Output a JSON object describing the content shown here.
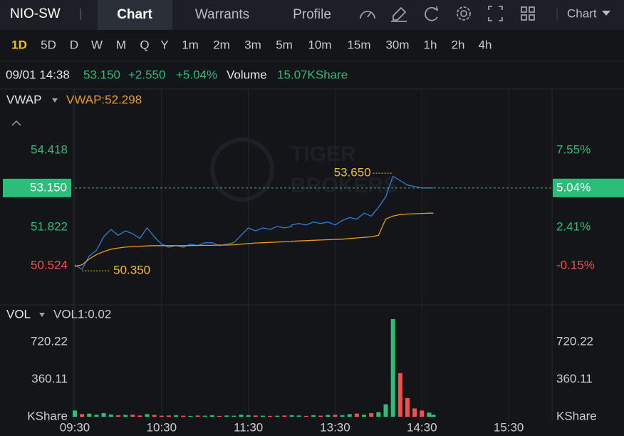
{
  "header": {
    "symbol": "NIO-SW",
    "tabs": [
      "Chart",
      "Warrants",
      "Profile"
    ],
    "chart_menu": "Chart"
  },
  "periods": [
    "1D",
    "5D",
    "D",
    "W",
    "M",
    "Q",
    "Y",
    "1m",
    "2m",
    "3m",
    "5m",
    "10m",
    "15m",
    "30m",
    "1h",
    "2h",
    "4h"
  ],
  "quote": {
    "time": "09/01 14:38",
    "price": "53.150",
    "change": "+2.550",
    "change_pct": "+5.04%",
    "volume_label": "Volume",
    "volume": "15.07KShare"
  },
  "watermark": [
    "TIGER",
    "BROKERS"
  ],
  "chart_data": [
    {
      "type": "line",
      "x": [
        "09:30",
        "09:35",
        "09:40",
        "09:45",
        "09:50",
        "09:55",
        "10:00",
        "10:05",
        "10:10",
        "10:15",
        "10:20",
        "10:25",
        "10:30",
        "10:35",
        "10:40",
        "10:45",
        "10:50",
        "10:55",
        "11:00",
        "11:05",
        "11:10",
        "11:15",
        "11:20",
        "11:25",
        "11:30",
        "11:35",
        "11:40",
        "11:45",
        "11:50",
        "11:55",
        "12:00",
        "13:00",
        "13:05",
        "13:10",
        "13:15",
        "13:20",
        "13:25",
        "13:30",
        "13:35",
        "13:40",
        "13:45",
        "13:50",
        "13:55",
        "14:00",
        "14:05",
        "14:10",
        "14:15",
        "14:20",
        "14:25",
        "14:30",
        "14:35",
        "14:38"
      ],
      "series": [
        {
          "color": "#2f7ed8",
          "values": [
            50.55,
            50.4,
            50.85,
            51.05,
            51.5,
            51.75,
            51.55,
            51.7,
            51.6,
            51.45,
            51.8,
            51.5,
            51.25,
            51.15,
            51.2,
            51.15,
            51.25,
            51.2,
            51.3,
            51.3,
            51.2,
            51.25,
            51.3,
            51.55,
            51.8,
            51.7,
            51.8,
            51.75,
            51.85,
            51.8,
            51.85,
            51.9,
            51.95,
            51.9,
            52.0,
            51.95,
            52.0,
            51.9,
            52.05,
            52.15,
            52.1,
            52.3,
            52.2,
            52.5,
            52.85,
            53.55,
            53.4,
            53.25,
            53.2,
            53.15,
            53.15,
            53.15
          ]
        },
        {
          "name": "VWAP",
          "color": "#e89a23",
          "values": [
            50.5,
            50.55,
            50.75,
            50.9,
            51.0,
            51.08,
            51.12,
            51.15,
            51.17,
            51.18,
            51.19,
            51.2,
            51.2,
            51.2,
            51.2,
            51.2,
            51.2,
            51.21,
            51.21,
            51.21,
            51.22,
            51.22,
            51.23,
            51.25,
            51.27,
            51.29,
            51.3,
            51.31,
            51.32,
            51.33,
            51.34,
            51.35,
            51.36,
            51.37,
            51.38,
            51.39,
            51.4,
            51.41,
            51.42,
            51.44,
            51.46,
            51.48,
            51.5,
            51.55,
            52.1,
            52.2,
            52.25,
            52.27,
            52.28,
            52.29,
            52.3,
            52.298
          ]
        }
      ],
      "indicator_label": "VWAP:52.298",
      "xlim": [
        "09:30",
        "16:00"
      ],
      "ylim": [
        49.75,
        55.05
      ],
      "yticks": [
        50.524,
        51.822,
        54.418
      ],
      "y2lim": [
        -1.68,
        8.79
      ],
      "y2ticks": [
        {
          "value": -0.15,
          "label": "-0.15%"
        },
        {
          "value": 2.41,
          "label": "2.41%"
        },
        {
          "value": 7.55,
          "label": "7.55%"
        }
      ],
      "last": {
        "value": 53.15,
        "label": "53.150"
      },
      "last_pct": {
        "value": 5.04,
        "label": "5.04%"
      },
      "high": {
        "value": 53.65,
        "label": "53.650"
      },
      "low": {
        "value": 50.35,
        "label": "50.350"
      },
      "up_color": "#2dbd7a",
      "down_color": "#f0514f",
      "grid": true
    },
    {
      "type": "bar",
      "name": "VOL",
      "indicator_label": "VOL1:0.02",
      "x": [
        "09:30",
        "09:35",
        "09:40",
        "09:45",
        "09:50",
        "09:55",
        "10:00",
        "10:05",
        "10:10",
        "10:15",
        "10:20",
        "10:25",
        "10:30",
        "10:35",
        "10:40",
        "10:45",
        "10:50",
        "10:55",
        "11:00",
        "11:05",
        "11:10",
        "11:15",
        "11:20",
        "11:25",
        "11:30",
        "11:35",
        "11:40",
        "11:45",
        "11:50",
        "11:55",
        "12:00",
        "13:00",
        "13:05",
        "13:10",
        "13:15",
        "13:20",
        "13:25",
        "13:30",
        "13:35",
        "13:40",
        "13:45",
        "13:50",
        "13:55",
        "14:00",
        "14:05",
        "14:10",
        "14:15",
        "14:20",
        "14:25",
        "14:30",
        "14:35",
        "14:38"
      ],
      "values": [
        60,
        25,
        30,
        20,
        35,
        22,
        15,
        18,
        20,
        12,
        25,
        18,
        10,
        12,
        15,
        10,
        8,
        12,
        10,
        15,
        8,
        12,
        10,
        20,
        15,
        12,
        10,
        8,
        10,
        12,
        15,
        10,
        12,
        8,
        15,
        10,
        18,
        20,
        15,
        25,
        30,
        20,
        35,
        45,
        120,
        940,
        420,
        180,
        80,
        60,
        40,
        20
      ],
      "xlim": [
        "09:30",
        "16:00"
      ],
      "xticks": [
        "09:30",
        "10:30",
        "11:30",
        "13:30",
        "14:30",
        "15:30"
      ],
      "ylim": [
        0,
        960
      ],
      "yticks": [
        {
          "value": 0,
          "label": "KShare"
        },
        360.11,
        720.22
      ],
      "grid": true
    }
  ]
}
